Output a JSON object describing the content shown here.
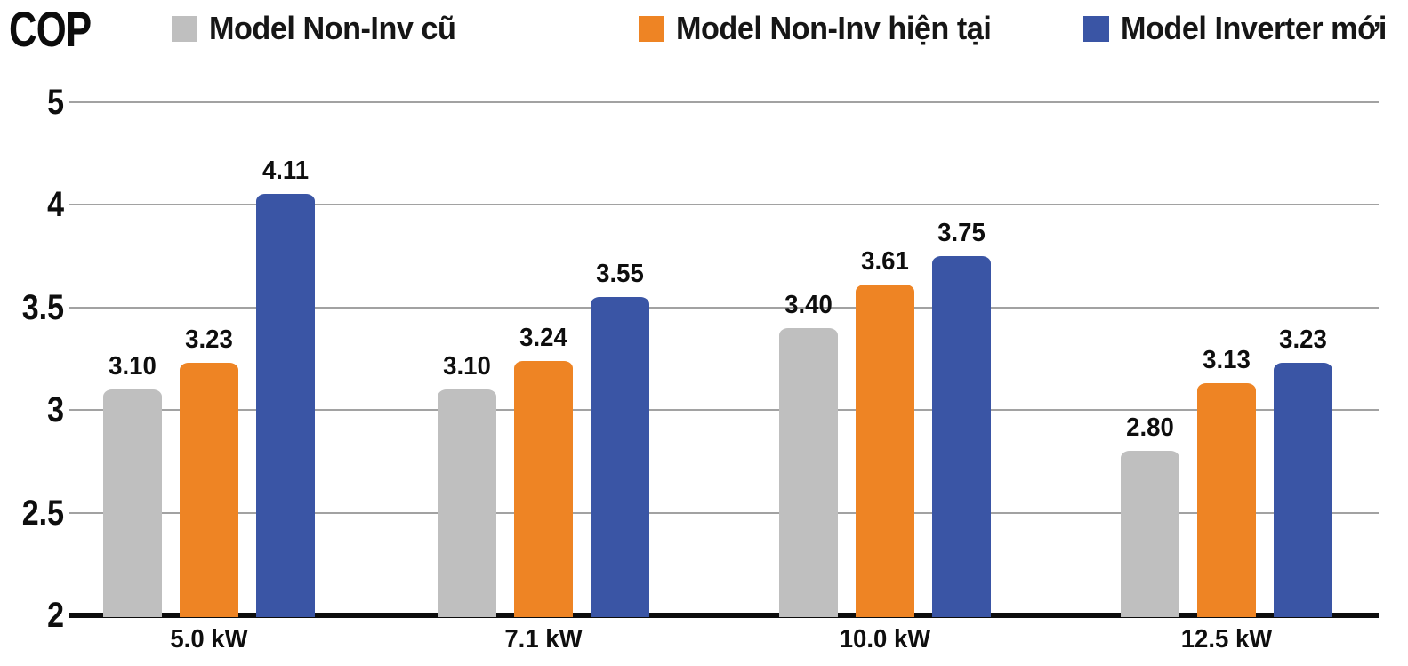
{
  "chart": {
    "title": "COP"
  },
  "chart_data": {
    "type": "bar",
    "title": "COP",
    "xlabel": "",
    "ylabel": "COP",
    "categories": [
      "5.0 kW",
      "7.1 kW",
      "10.0 kW",
      "12.5 kW"
    ],
    "series": [
      {
        "name": "Model Non-Inv cũ",
        "color": "#bfbfbf",
        "values": [
          3.1,
          3.1,
          3.4,
          2.8
        ],
        "values_display": [
          "3.10",
          "3.10",
          "3.40",
          "2.80"
        ]
      },
      {
        "name": "Model Non-Inv hiện tại",
        "color": "#ee8424",
        "values": [
          3.23,
          3.24,
          3.61,
          3.13
        ],
        "values_display": [
          "3.23",
          "3.24",
          "3.61",
          "3.13"
        ]
      },
      {
        "name": "Model Inverter mới",
        "color": "#3a55a5",
        "values": [
          4.11,
          3.55,
          3.75,
          3.23
        ],
        "values_display": [
          "4.11",
          "3.55",
          "3.75",
          "3.23"
        ]
      }
    ],
    "y_axis": {
      "ticks": [
        2,
        2.5,
        3,
        3.5,
        4,
        5
      ],
      "tick_labels": [
        "2",
        "2.5",
        "3",
        "3.5",
        "4",
        "5"
      ],
      "note": "broken scale: evenly spaced gridlines, top interval spans 4 to 5"
    },
    "ylim": [
      2,
      5
    ],
    "grid": true,
    "legend_position": "top",
    "value_labels_shown": true
  }
}
